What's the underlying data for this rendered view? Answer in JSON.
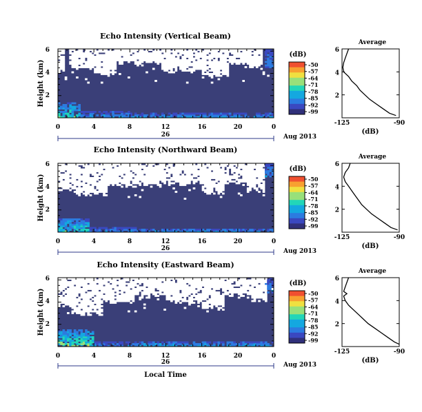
{
  "colors": {
    "background_echo": "#3a3f78",
    "no_data": "#ffffff",
    "colormap": [
      "#30307a",
      "#3a48c0",
      "#2c7be0",
      "#14a8e0",
      "#22d6b8",
      "#98e07a",
      "#f0e040",
      "#f8a030",
      "#f05030"
    ]
  },
  "chart_data": [
    {
      "type": "heatmap",
      "title": "Echo Intensity (Vertical Beam)",
      "ylabel": "Height (km)",
      "yticks": [
        "2",
        "4",
        "6"
      ],
      "ylim": [
        0,
        6.2
      ],
      "xticks": [
        "0",
        "4",
        "8",
        "12",
        "16",
        "20",
        "0"
      ],
      "xlim": [
        0,
        24
      ],
      "date_marker": "26",
      "date_label": "Aug 2013",
      "colorbar": {
        "label": "(dB)",
        "ticks": [
          "-50",
          "-57",
          "-64",
          "-71",
          "-78",
          "-85",
          "-92",
          "-99"
        ]
      },
      "no_data_regions": [
        {
          "h0": 0,
          "h1": 0.7,
          "z0": 4.2,
          "z1": 6.2
        },
        {
          "h0": 1.2,
          "h1": 4.0,
          "z0": 4.5,
          "z1": 6.2
        },
        {
          "h0": 4.0,
          "h1": 6.5,
          "z0": 4.0,
          "z1": 6.2
        },
        {
          "h0": 6.5,
          "h1": 11.5,
          "z0": 4.9,
          "z1": 6.2
        },
        {
          "h0": 11.5,
          "h1": 16.0,
          "z0": 4.2,
          "z1": 6.2
        },
        {
          "h0": 16.0,
          "h1": 19.0,
          "z0": 3.8,
          "z1": 6.2
        },
        {
          "h0": 19.0,
          "h1": 21.0,
          "z0": 4.8,
          "z1": 6.2
        },
        {
          "h0": 21.0,
          "h1": 22.8,
          "z0": 4.6,
          "z1": 6.2
        }
      ],
      "strong_echo_regions": [
        {
          "h0": 0,
          "h1": 2.5,
          "z0": 0,
          "z1": 1.4,
          "level": 0.55
        },
        {
          "h0": 2.5,
          "h1": 8,
          "z0": 0,
          "z1": 0.6,
          "level": 0.35
        },
        {
          "h0": 8,
          "h1": 24,
          "z0": 0,
          "z1": 0.4,
          "level": 0.4
        },
        {
          "h0": 23,
          "h1": 24,
          "z0": 4.5,
          "z1": 6.2,
          "level": 0.3
        }
      ],
      "average_profile": {
        "title": "Average",
        "xlabel": "(dB)",
        "xticks": [
          "-125",
          "-90"
        ],
        "xlim": [
          -125,
          -90
        ],
        "yticks": [
          "2",
          "4",
          "6"
        ],
        "ylim": [
          0,
          6
        ],
        "heights": [
          6,
          5.6,
          5.2,
          4.8,
          4.4,
          4.0,
          3.6,
          3.2,
          2.8,
          2.4,
          2.0,
          1.6,
          1.2,
          0.8,
          0.4,
          0.2
        ],
        "values": [
          -121,
          -122,
          -123,
          -124,
          -124.5,
          -124,
          -121,
          -119,
          -116,
          -114,
          -111,
          -108,
          -104,
          -100,
          -96,
          -92
        ]
      }
    },
    {
      "type": "heatmap",
      "title": "Echo Intensity (Northward Beam)",
      "ylabel": "Height (km)",
      "yticks": [
        "2",
        "4",
        "6"
      ],
      "ylim": [
        0,
        6.2
      ],
      "xticks": [
        "0",
        "4",
        "8",
        "12",
        "16",
        "20",
        "0"
      ],
      "xlim": [
        0,
        24
      ],
      "date_marker": "26",
      "date_label": "Aug 2013",
      "colorbar": {
        "label": "(dB)",
        "ticks": [
          "-50",
          "-57",
          "-64",
          "-71",
          "-78",
          "-85",
          "-92",
          "-99"
        ]
      },
      "no_data_regions": [
        {
          "h0": 0,
          "h1": 2.0,
          "z0": 3.8,
          "z1": 6.2
        },
        {
          "h0": 2.0,
          "h1": 5.5,
          "z0": 3.4,
          "z1": 6.2
        },
        {
          "h0": 5.5,
          "h1": 11.0,
          "z0": 4.2,
          "z1": 6.2
        },
        {
          "h0": 11.0,
          "h1": 16.0,
          "z0": 4.4,
          "z1": 6.2
        },
        {
          "h0": 16.0,
          "h1": 18.5,
          "z0": 3.6,
          "z1": 6.2
        },
        {
          "h0": 18.5,
          "h1": 21.0,
          "z0": 4.5,
          "z1": 6.2
        },
        {
          "h0": 21.0,
          "h1": 23.0,
          "z0": 3.8,
          "z1": 6.2
        }
      ],
      "strong_echo_regions": [
        {
          "h0": 0,
          "h1": 3.5,
          "z0": 0,
          "z1": 1.3,
          "level": 0.5
        },
        {
          "h0": 3.5,
          "h1": 9,
          "z0": 0,
          "z1": 0.5,
          "level": 0.3
        },
        {
          "h0": 9,
          "h1": 24,
          "z0": 0,
          "z1": 0.35,
          "level": 0.35
        },
        {
          "h0": 23,
          "h1": 24,
          "z0": 5.0,
          "z1": 6.2,
          "level": 0.3
        }
      ],
      "average_profile": {
        "title": "Average",
        "xlabel": "(dB)",
        "xticks": [
          "-125",
          "-90"
        ],
        "xlim": [
          -125,
          -90
        ],
        "yticks": [
          "2",
          "4",
          "6"
        ],
        "ylim": [
          0,
          6
        ],
        "heights": [
          6,
          5.6,
          5.2,
          4.8,
          4.4,
          4.0,
          3.6,
          3.2,
          2.8,
          2.4,
          2.0,
          1.6,
          1.2,
          0.8,
          0.4,
          0.2
        ],
        "values": [
          -120,
          -121,
          -123,
          -124,
          -123,
          -121,
          -119,
          -117,
          -115,
          -113,
          -110,
          -107,
          -103,
          -99,
          -95,
          -91
        ]
      }
    },
    {
      "type": "heatmap",
      "title": "Echo Intensity (Eastward Beam)",
      "ylabel": "Height (km)",
      "yticks": [
        "2",
        "4",
        "6"
      ],
      "ylim": [
        0,
        6.2
      ],
      "xticks": [
        "0",
        "4",
        "8",
        "12",
        "16",
        "20",
        "0"
      ],
      "xlim": [
        0,
        24
      ],
      "date_marker": "26",
      "date_label": "Aug 2013",
      "xlabel": "Local Time",
      "colorbar": {
        "label": "(dB)",
        "ticks": [
          "-50",
          "-57",
          "-64",
          "-71",
          "-78",
          "-85",
          "-92",
          "-99"
        ]
      },
      "no_data_regions": [
        {
          "h0": 0,
          "h1": 1.5,
          "z0": 3.6,
          "z1": 6.2
        },
        {
          "h0": 1.5,
          "h1": 5.0,
          "z0": 3.0,
          "z1": 6.2
        },
        {
          "h0": 5.0,
          "h1": 8.5,
          "z0": 4.0,
          "z1": 6.2
        },
        {
          "h0": 8.5,
          "h1": 12.0,
          "z0": 4.6,
          "z1": 6.2
        },
        {
          "h0": 12.0,
          "h1": 16.0,
          "z0": 4.0,
          "z1": 6.2
        },
        {
          "h0": 16.0,
          "h1": 18.5,
          "z0": 3.5,
          "z1": 6.2
        },
        {
          "h0": 18.5,
          "h1": 21.5,
          "z0": 4.6,
          "z1": 6.2
        },
        {
          "h0": 21.5,
          "h1": 23.2,
          "z0": 4.2,
          "z1": 6.2
        }
      ],
      "strong_echo_regions": [
        {
          "h0": 0,
          "h1": 4.0,
          "z0": 0,
          "z1": 1.5,
          "level": 0.65
        },
        {
          "h0": 4.0,
          "h1": 9,
          "z0": 0,
          "z1": 0.5,
          "level": 0.3
        },
        {
          "h0": 9,
          "h1": 24,
          "z0": 0,
          "z1": 0.45,
          "level": 0.4
        },
        {
          "h0": 23,
          "h1": 24,
          "z0": 4.8,
          "z1": 6.2,
          "level": 0.3
        }
      ],
      "average_profile": {
        "title": "Average",
        "xlabel": "(dB)",
        "xticks": [
          "-125",
          "-90"
        ],
        "xlim": [
          -125,
          -90
        ],
        "yticks": [
          "2",
          "4",
          "6"
        ],
        "ylim": [
          0,
          6
        ],
        "heights": [
          6,
          5.6,
          5.2,
          4.8,
          4.6,
          4.4,
          4.0,
          3.6,
          3.2,
          2.8,
          2.4,
          2.0,
          1.6,
          1.2,
          0.8,
          0.4,
          0.2
        ],
        "values": [
          -121,
          -122,
          -123,
          -124,
          -122,
          -124,
          -123,
          -121,
          -118,
          -115,
          -112,
          -109,
          -105,
          -101,
          -97,
          -93,
          -90
        ]
      }
    }
  ]
}
